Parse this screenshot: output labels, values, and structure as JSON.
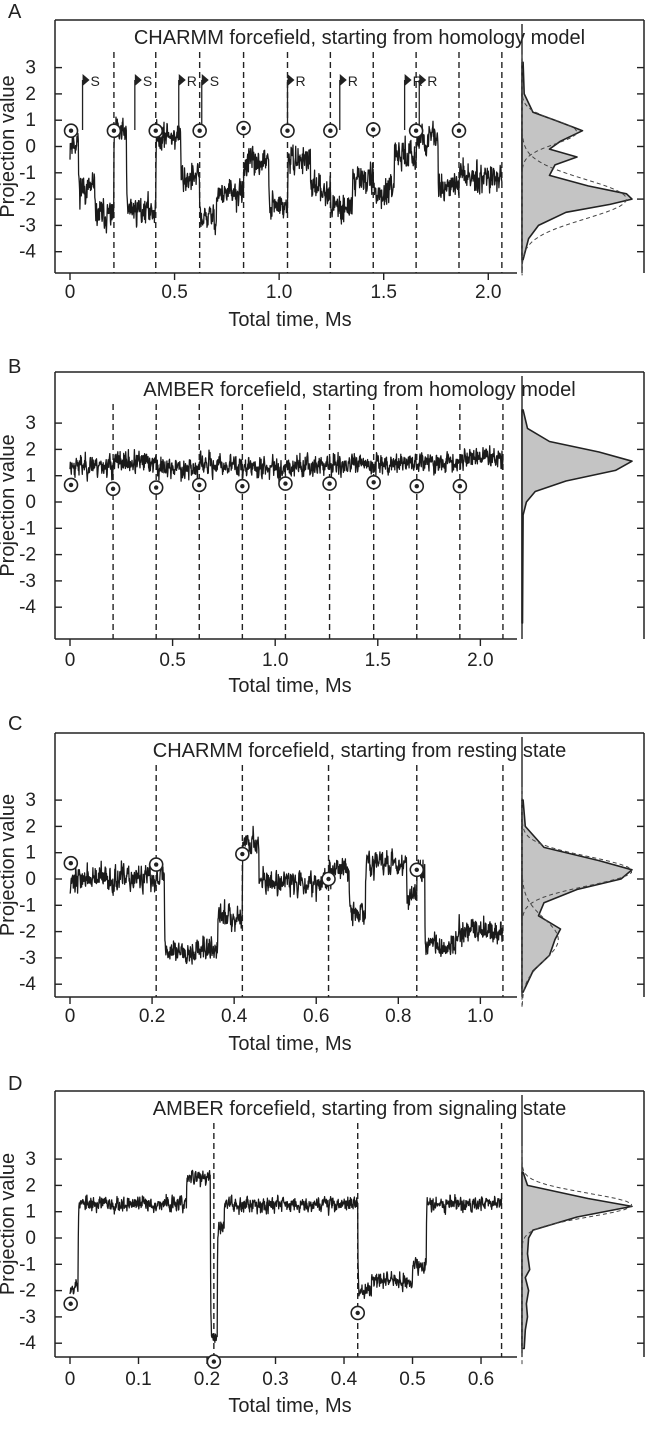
{
  "chart_data": [
    {
      "type": "line",
      "panel_label": "A",
      "title": "CHARMM forcefield, starting from homology model",
      "xlabel": "Total time, Ms",
      "ylabel": "Projection value",
      "xlim": [
        0,
        2.08
      ],
      "ylim": [
        -5,
        4
      ],
      "x_ticks": [
        "0",
        "0.5",
        "1.0",
        "1.5",
        "2.0"
      ],
      "x_tick_values": [
        0,
        0.5,
        1.0,
        1.5,
        2.0
      ],
      "y_ticks": [
        "3",
        "2",
        "1",
        "0",
        "-1",
        "-2",
        "-3",
        "-4"
      ],
      "y_tick_values": [
        3,
        2,
        1,
        0,
        -1,
        -2,
        -3,
        -4
      ],
      "segment_boundaries": [
        0.21,
        0.41,
        0.62,
        0.83,
        1.04,
        1.245,
        1.45,
        1.655,
        1.86,
        2.065
      ],
      "start_points": [
        {
          "x": 0.005,
          "y": 0.6
        },
        {
          "x": 0.21,
          "y": 0.6
        },
        {
          "x": 0.41,
          "y": 0.6
        },
        {
          "x": 0.62,
          "y": 0.6
        },
        {
          "x": 0.83,
          "y": 0.7
        },
        {
          "x": 1.04,
          "y": 0.6
        },
        {
          "x": 1.245,
          "y": 0.6
        },
        {
          "x": 1.45,
          "y": 0.65
        },
        {
          "x": 1.655,
          "y": 0.6
        },
        {
          "x": 1.86,
          "y": 0.6
        }
      ],
      "flags": [
        {
          "x": 0.06,
          "label": "S"
        },
        {
          "x": 0.31,
          "label": "S"
        },
        {
          "x": 0.52,
          "label": "R"
        },
        {
          "x": 0.63,
          "label": "S"
        },
        {
          "x": 1.04,
          "label": "R"
        },
        {
          "x": 1.29,
          "label": "R"
        },
        {
          "x": 1.6,
          "label": "R"
        },
        {
          "x": 1.67,
          "label": "R"
        }
      ],
      "trace": {
        "seed": 11,
        "noise": 0.55,
        "levels": [
          [
            0,
            0.04,
            0.2
          ],
          [
            0.04,
            0.12,
            -1.6
          ],
          [
            0.12,
            0.21,
            -2.6
          ],
          [
            0.21,
            0.27,
            0.5
          ],
          [
            0.27,
            0.41,
            -2.4
          ],
          [
            0.41,
            0.53,
            0.4
          ],
          [
            0.53,
            0.62,
            -1.2
          ],
          [
            0.62,
            0.7,
            -2.7
          ],
          [
            0.7,
            0.83,
            -1.8
          ],
          [
            0.83,
            0.95,
            -0.6
          ],
          [
            0.95,
            1.04,
            -2.3
          ],
          [
            1.04,
            1.15,
            -0.5
          ],
          [
            1.15,
            1.245,
            -1.6
          ],
          [
            1.245,
            1.35,
            -2.3
          ],
          [
            1.35,
            1.45,
            -1.2
          ],
          [
            1.45,
            1.55,
            -1.8
          ],
          [
            1.55,
            1.655,
            -0.3
          ],
          [
            1.655,
            1.76,
            0.3
          ],
          [
            1.76,
            1.86,
            -1.5
          ],
          [
            1.86,
            2.065,
            -1.1
          ]
        ]
      },
      "distribution": {
        "total": [
          [
            3.2,
            0.01
          ],
          [
            2,
            0.02
          ],
          [
            1.3,
            0.1
          ],
          [
            1,
            0.3
          ],
          [
            0.6,
            0.55
          ],
          [
            0.2,
            0.35
          ],
          [
            -0.1,
            0.25
          ],
          [
            -0.4,
            0.5
          ],
          [
            -0.7,
            0.3
          ],
          [
            -1.1,
            0.25
          ],
          [
            -1.5,
            0.6
          ],
          [
            -1.8,
            0.95
          ],
          [
            -2,
            1.0
          ],
          [
            -2.2,
            0.8
          ],
          [
            -2.5,
            0.4
          ],
          [
            -3,
            0.15
          ],
          [
            -3.5,
            0.06
          ],
          [
            -4.3,
            0.01
          ]
        ],
        "components": [
          {
            "mean": 0.55,
            "sd": 0.45,
            "amp": 0.5
          },
          {
            "mean": -2.0,
            "sd": 0.75,
            "amp": 0.95
          }
        ]
      }
    },
    {
      "type": "line",
      "panel_label": "B",
      "title": "AMBER forcefield, starting from homology model",
      "xlabel": "Total time, Ms",
      "ylabel": "Projection value",
      "xlim": [
        0,
        2.12
      ],
      "ylim": [
        -5,
        4
      ],
      "x_ticks": [
        "0",
        "0.5",
        "1.0",
        "1.5",
        "2.0"
      ],
      "x_tick_values": [
        0,
        0.5,
        1.0,
        1.5,
        2.0
      ],
      "y_ticks": [
        "3",
        "2",
        "1",
        "0",
        "-1",
        "-2",
        "-3",
        "-4"
      ],
      "y_tick_values": [
        3,
        2,
        1,
        0,
        -1,
        -2,
        -3,
        -4
      ],
      "segment_boundaries": [
        0.21,
        0.42,
        0.63,
        0.84,
        1.05,
        1.265,
        1.48,
        1.69,
        1.9,
        2.11
      ],
      "start_points": [
        {
          "x": 0.005,
          "y": 0.65
        },
        {
          "x": 0.21,
          "y": 0.5
        },
        {
          "x": 0.42,
          "y": 0.55
        },
        {
          "x": 0.63,
          "y": 0.65
        },
        {
          "x": 0.84,
          "y": 0.6
        },
        {
          "x": 1.05,
          "y": 0.7
        },
        {
          "x": 1.265,
          "y": 0.7
        },
        {
          "x": 1.48,
          "y": 0.75
        },
        {
          "x": 1.69,
          "y": 0.6
        },
        {
          "x": 1.9,
          "y": 0.6
        }
      ],
      "flags": [],
      "trace": {
        "seed": 23,
        "noise": 0.42,
        "levels": [
          [
            0,
            0.21,
            1.4
          ],
          [
            0.21,
            0.42,
            1.5
          ],
          [
            0.42,
            0.63,
            1.3
          ],
          [
            0.63,
            0.84,
            1.4
          ],
          [
            0.84,
            1.05,
            1.3
          ],
          [
            1.05,
            1.265,
            1.4
          ],
          [
            1.265,
            1.48,
            1.4
          ],
          [
            1.48,
            1.69,
            1.5
          ],
          [
            1.69,
            1.9,
            1.5
          ],
          [
            1.9,
            2.11,
            1.7
          ]
        ]
      },
      "distribution": {
        "total": [
          [
            3.5,
            0.01
          ],
          [
            2.8,
            0.05
          ],
          [
            2.3,
            0.25
          ],
          [
            1.9,
            0.7
          ],
          [
            1.55,
            1.0
          ],
          [
            1.2,
            0.85
          ],
          [
            0.8,
            0.4
          ],
          [
            0.4,
            0.12
          ],
          [
            0,
            0.04
          ],
          [
            -0.5,
            0.01
          ],
          [
            -4.6,
            0.005
          ]
        ],
        "components": []
      }
    },
    {
      "type": "line",
      "panel_label": "C",
      "title": "CHARMM forcefield, starting from resting state",
      "xlabel": "Total time, Ms",
      "ylabel": "Projection value",
      "xlim": [
        0,
        1.06
      ],
      "ylim": [
        -5,
        4
      ],
      "x_ticks": [
        "0",
        "0.2",
        "0.4",
        "0.6",
        "0.8",
        "1.0"
      ],
      "x_tick_values": [
        0,
        0.2,
        0.4,
        0.6,
        0.8,
        1.0
      ],
      "y_ticks": [
        "3",
        "2",
        "1",
        "0",
        "-1",
        "-2",
        "-3",
        "-4"
      ],
      "y_tick_values": [
        3,
        2,
        1,
        0,
        -1,
        -2,
        -3,
        -4
      ],
      "segment_boundaries": [
        0.21,
        0.42,
        0.63,
        0.845,
        1.055
      ],
      "start_points": [
        {
          "x": 0.002,
          "y": 0.6
        },
        {
          "x": 0.21,
          "y": 0.55
        },
        {
          "x": 0.42,
          "y": 0.95
        },
        {
          "x": 0.63,
          "y": 0.0
        },
        {
          "x": 0.845,
          "y": 0.35
        }
      ],
      "flags": [],
      "trace": {
        "seed": 37,
        "noise": 0.5,
        "levels": [
          [
            0,
            0.21,
            0.0
          ],
          [
            0.21,
            0.23,
            0.2
          ],
          [
            0.23,
            0.36,
            -2.7
          ],
          [
            0.36,
            0.42,
            -1.4
          ],
          [
            0.42,
            0.46,
            1.4
          ],
          [
            0.46,
            0.63,
            -0.1
          ],
          [
            0.63,
            0.68,
            0.4
          ],
          [
            0.68,
            0.72,
            -1.3
          ],
          [
            0.72,
            0.82,
            0.6
          ],
          [
            0.82,
            0.845,
            -0.6
          ],
          [
            0.845,
            0.865,
            0.3
          ],
          [
            0.865,
            0.94,
            -2.6
          ],
          [
            0.94,
            1.055,
            -2.0
          ]
        ]
      },
      "distribution": {
        "total": [
          [
            3,
            0.01
          ],
          [
            2,
            0.03
          ],
          [
            1.2,
            0.2
          ],
          [
            0.7,
            0.7
          ],
          [
            0.35,
            1.0
          ],
          [
            0,
            0.9
          ],
          [
            -0.4,
            0.5
          ],
          [
            -0.9,
            0.2
          ],
          [
            -1.4,
            0.15
          ],
          [
            -1.9,
            0.35
          ],
          [
            -2.3,
            0.3
          ],
          [
            -2.9,
            0.25
          ],
          [
            -3.5,
            0.1
          ],
          [
            -4.3,
            0.01
          ]
        ],
        "components": [
          {
            "mean": 0.3,
            "sd": 0.55,
            "amp": 1.0
          },
          {
            "mean": -2.3,
            "sd": 0.8,
            "amp": 0.33
          }
        ]
      }
    },
    {
      "type": "line",
      "panel_label": "D",
      "title": "AMBER forcefield, starting from signaling state",
      "xlabel": "Total time, Ms",
      "ylabel": "Projection value",
      "xlim": [
        0,
        0.635
      ],
      "ylim": [
        -5,
        4
      ],
      "x_ticks": [
        "0",
        "0.1",
        "0.2",
        "0.3",
        "0.4",
        "0.5",
        "0.6"
      ],
      "x_tick_values": [
        0,
        0.1,
        0.2,
        0.3,
        0.4,
        0.5,
        0.6
      ],
      "y_ticks": [
        "3",
        "2",
        "1",
        "0",
        "-1",
        "-2",
        "-3",
        "-4"
      ],
      "y_tick_values": [
        3,
        2,
        1,
        0,
        -1,
        -2,
        -3,
        -4
      ],
      "segment_boundaries": [
        0.21,
        0.42,
        0.63
      ],
      "start_points": [
        {
          "x": 0.001,
          "y": -2.5
        },
        {
          "x": 0.21,
          "y": -4.7
        },
        {
          "x": 0.42,
          "y": -2.85
        }
      ],
      "flags": [],
      "trace": {
        "seed": 53,
        "noise": 0.3,
        "levels": [
          [
            0,
            0.012,
            -1.8
          ],
          [
            0.012,
            0.17,
            1.3
          ],
          [
            0.17,
            0.205,
            2.3
          ],
          [
            0.205,
            0.215,
            -3.8
          ],
          [
            0.215,
            0.225,
            0.5
          ],
          [
            0.225,
            0.42,
            1.3
          ],
          [
            0.42,
            0.44,
            -2.0
          ],
          [
            0.44,
            0.5,
            -1.6
          ],
          [
            0.5,
            0.52,
            -1.0
          ],
          [
            0.52,
            0.63,
            1.3
          ]
        ]
      },
      "distribution": {
        "total": [
          [
            2.5,
            0.01
          ],
          [
            2,
            0.05
          ],
          [
            1.5,
            0.6
          ],
          [
            1.2,
            1.0
          ],
          [
            0.8,
            0.5
          ],
          [
            0.3,
            0.1
          ],
          [
            0,
            0.06
          ],
          [
            -0.6,
            0.05
          ],
          [
            -1.2,
            0.07
          ],
          [
            -1.5,
            0.03
          ],
          [
            -2,
            0.06
          ],
          [
            -2.5,
            0.04
          ],
          [
            -3,
            0.05
          ],
          [
            -3.5,
            0.03
          ],
          [
            -4.2,
            0.02
          ]
        ],
        "components": [
          {
            "mean": 1.25,
            "sd": 0.45,
            "amp": 1.0
          }
        ]
      }
    }
  ]
}
